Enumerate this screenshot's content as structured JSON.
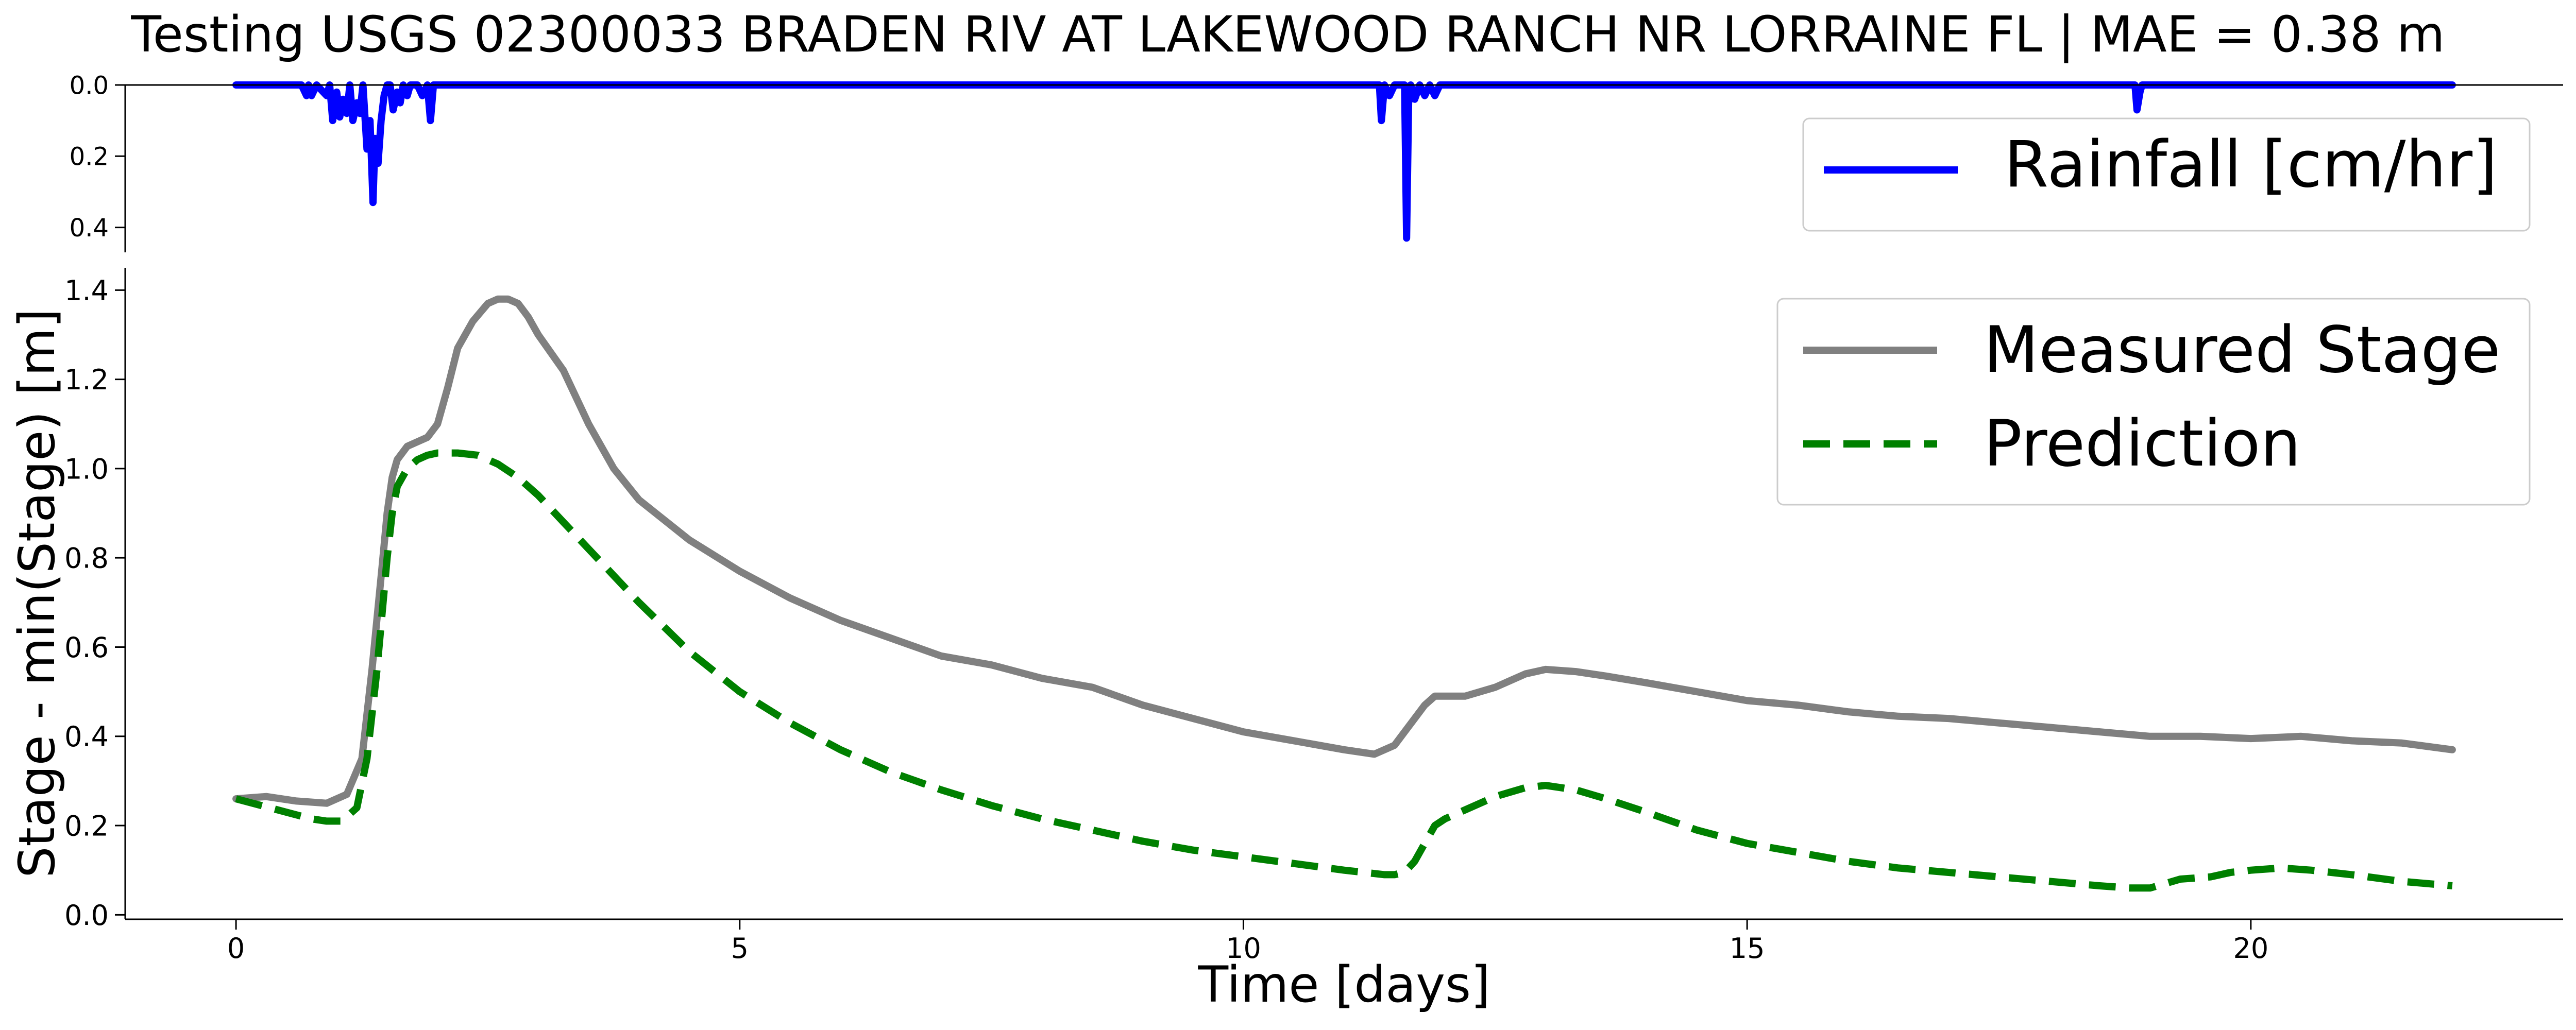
{
  "figure": {
    "title": "Testing USGS 02300033 BRADEN RIV AT LAKEWOOD RANCH NR LORRAINE FL | MAE = 0.38 m"
  },
  "chart_data": [
    {
      "id": "rainfall",
      "type": "line",
      "title": "",
      "xlabel": "",
      "ylabel": "",
      "xlim": [
        -1.1,
        23.1
      ],
      "ylim": [
        0.47,
        0.0
      ],
      "y_inverted": true,
      "yticks": [
        0.0,
        0.2,
        0.4
      ],
      "ytick_labels": [
        "0.0",
        "0.2",
        "0.4"
      ],
      "xticks_visible": false,
      "grid": false,
      "legend": {
        "placement": "upper right",
        "entries": [
          "Rainfall [cm/hr]"
        ]
      },
      "series": [
        {
          "name": "Rainfall [cm/hr]",
          "color": "#0000ff",
          "style": "solid",
          "x": [
            0.0,
            0.65,
            0.7,
            0.72,
            0.75,
            0.8,
            0.9,
            0.93,
            0.96,
            1.0,
            1.03,
            1.06,
            1.1,
            1.13,
            1.16,
            1.2,
            1.23,
            1.26,
            1.3,
            1.33,
            1.36,
            1.38,
            1.41,
            1.44,
            1.47,
            1.5,
            1.53,
            1.56,
            1.6,
            1.63,
            1.66,
            1.7,
            1.73,
            1.76,
            1.8,
            1.85,
            1.9,
            1.93,
            1.96,
            2.0,
            11.35,
            11.37,
            11.4,
            11.45,
            11.5,
            11.55,
            11.6,
            11.62,
            11.64,
            11.66,
            11.7,
            11.75,
            11.8,
            11.85,
            11.9,
            11.95,
            12.0,
            18.85,
            18.87,
            18.9,
            18.92,
            22.0
          ],
          "values": [
            0.0,
            0.0,
            0.03,
            0.0,
            0.03,
            0.0,
            0.03,
            0.0,
            0.1,
            0.02,
            0.09,
            0.04,
            0.08,
            0.0,
            0.1,
            0.05,
            0.08,
            0.0,
            0.18,
            0.1,
            0.33,
            0.15,
            0.22,
            0.1,
            0.03,
            0.0,
            0.0,
            0.07,
            0.02,
            0.05,
            0.0,
            0.03,
            0.0,
            0.0,
            0.0,
            0.03,
            0.0,
            0.1,
            0.0,
            0.0,
            0.0,
            0.1,
            0.0,
            0.03,
            0.0,
            0.0,
            0.0,
            0.43,
            0.05,
            0.0,
            0.04,
            0.0,
            0.03,
            0.0,
            0.03,
            0.0,
            0.0,
            0.0,
            0.07,
            0.02,
            0.0,
            0.0
          ]
        }
      ]
    },
    {
      "id": "stage",
      "type": "line",
      "title": "",
      "xlabel": "Time [days]",
      "ylabel": "Stage - min(Stage) [m]",
      "xlim": [
        -1.1,
        23.1
      ],
      "ylim": [
        -0.01,
        1.45
      ],
      "xticks": [
        0,
        5,
        10,
        15,
        20
      ],
      "xtick_labels": [
        "0",
        "5",
        "10",
        "15",
        "20"
      ],
      "yticks": [
        0.0,
        0.2,
        0.4,
        0.6,
        0.8,
        1.0,
        1.2,
        1.4
      ],
      "ytick_labels": [
        "0.0",
        "0.2",
        "0.4",
        "0.6",
        "0.8",
        "1.0",
        "1.2",
        "1.4"
      ],
      "grid": false,
      "legend": {
        "placement": "upper right",
        "entries": [
          "Measured Stage",
          "Prediction"
        ]
      },
      "series": [
        {
          "name": "Measured Stage",
          "color": "#808080",
          "style": "solid",
          "x": [
            0.0,
            0.3,
            0.6,
            0.9,
            1.1,
            1.25,
            1.35,
            1.45,
            1.5,
            1.55,
            1.6,
            1.7,
            1.8,
            1.9,
            2.0,
            2.1,
            2.2,
            2.35,
            2.5,
            2.6,
            2.7,
            2.8,
            2.9,
            3.0,
            3.25,
            3.5,
            3.75,
            4.0,
            4.5,
            5.0,
            5.5,
            6.0,
            6.5,
            7.0,
            7.5,
            8.0,
            8.5,
            9.0,
            9.5,
            10.0,
            10.5,
            11.0,
            11.3,
            11.5,
            11.6,
            11.8,
            11.9,
            12.0,
            12.2,
            12.5,
            12.8,
            13.0,
            13.3,
            13.6,
            14.0,
            14.5,
            15.0,
            15.5,
            16.0,
            16.5,
            17.0,
            17.5,
            18.0,
            18.5,
            19.0,
            19.5,
            20.0,
            20.5,
            21.0,
            21.5,
            22.0
          ],
          "values": [
            0.26,
            0.265,
            0.255,
            0.25,
            0.27,
            0.35,
            0.55,
            0.78,
            0.9,
            0.98,
            1.02,
            1.05,
            1.06,
            1.07,
            1.1,
            1.18,
            1.27,
            1.33,
            1.37,
            1.38,
            1.38,
            1.37,
            1.34,
            1.3,
            1.22,
            1.1,
            1.0,
            0.93,
            0.84,
            0.77,
            0.71,
            0.66,
            0.62,
            0.58,
            0.56,
            0.53,
            0.51,
            0.47,
            0.44,
            0.41,
            0.39,
            0.37,
            0.36,
            0.38,
            0.41,
            0.47,
            0.49,
            0.49,
            0.49,
            0.51,
            0.54,
            0.55,
            0.545,
            0.535,
            0.52,
            0.5,
            0.48,
            0.47,
            0.455,
            0.445,
            0.44,
            0.43,
            0.42,
            0.41,
            0.4,
            0.4,
            0.395,
            0.4,
            0.39,
            0.385,
            0.37
          ]
        },
        {
          "name": "Prediction",
          "color": "#008000",
          "style": "dashed",
          "x": [
            0.0,
            0.25,
            0.5,
            0.75,
            0.9,
            1.05,
            1.2,
            1.3,
            1.4,
            1.5,
            1.55,
            1.6,
            1.7,
            1.8,
            1.9,
            2.0,
            2.2,
            2.4,
            2.6,
            2.8,
            3.0,
            3.25,
            3.5,
            4.0,
            4.5,
            5.0,
            5.5,
            6.0,
            6.5,
            7.0,
            7.5,
            8.0,
            8.5,
            9.0,
            9.5,
            10.0,
            10.5,
            11.0,
            11.2,
            11.4,
            11.5,
            11.6,
            11.7,
            11.8,
            11.9,
            12.0,
            12.2,
            12.5,
            12.8,
            13.0,
            13.3,
            13.6,
            14.0,
            14.5,
            15.0,
            15.5,
            16.0,
            16.5,
            17.0,
            17.5,
            18.0,
            18.5,
            18.8,
            19.0,
            19.3,
            19.6,
            19.8,
            20.0,
            20.3,
            20.6,
            21.0,
            21.5,
            22.0
          ],
          "values": [
            0.26,
            0.245,
            0.23,
            0.215,
            0.21,
            0.21,
            0.24,
            0.35,
            0.55,
            0.8,
            0.9,
            0.96,
            1.0,
            1.02,
            1.03,
            1.035,
            1.035,
            1.03,
            1.01,
            0.98,
            0.94,
            0.88,
            0.82,
            0.7,
            0.59,
            0.5,
            0.43,
            0.37,
            0.32,
            0.28,
            0.245,
            0.215,
            0.19,
            0.165,
            0.145,
            0.13,
            0.115,
            0.1,
            0.095,
            0.09,
            0.09,
            0.095,
            0.12,
            0.16,
            0.2,
            0.215,
            0.235,
            0.265,
            0.285,
            0.29,
            0.28,
            0.26,
            0.23,
            0.19,
            0.16,
            0.14,
            0.12,
            0.105,
            0.095,
            0.085,
            0.075,
            0.065,
            0.06,
            0.06,
            0.08,
            0.085,
            0.095,
            0.1,
            0.105,
            0.1,
            0.09,
            0.075,
            0.065
          ]
        }
      ]
    }
  ]
}
